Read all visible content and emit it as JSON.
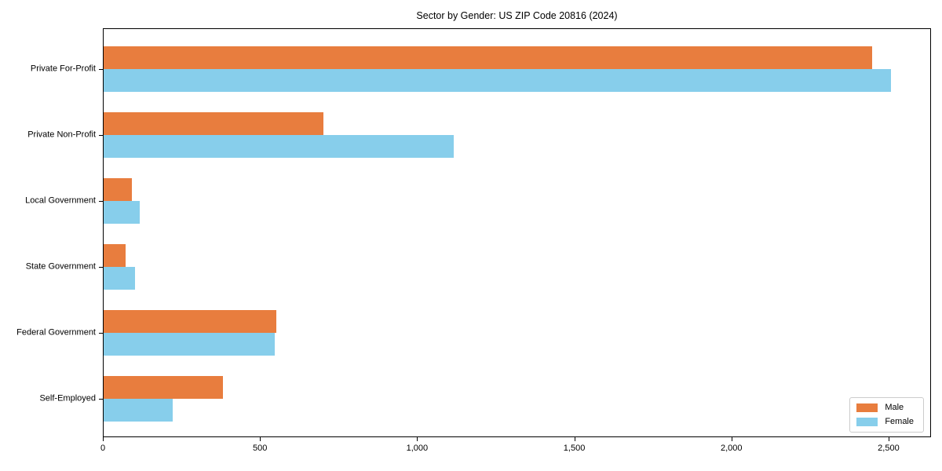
{
  "chart_data": {
    "type": "bar",
    "orientation": "horizontal",
    "title": "Sector by Gender: US ZIP Code 20816 (2024)",
    "categories": [
      "Private For-Profit",
      "Private Non-Profit",
      "Local Government",
      "State Government",
      "Federal Government",
      "Self-Employed"
    ],
    "series": [
      {
        "name": "Male",
        "color": "#e87d3e",
        "values": [
          2445,
          700,
          90,
          70,
          550,
          380
        ]
      },
      {
        "name": "Female",
        "color": "#87ceeb",
        "values": [
          2505,
          1115,
          115,
          100,
          545,
          220
        ]
      }
    ],
    "xlabel": "",
    "ylabel": "",
    "xlim": [
      0,
      2630
    ],
    "xticks": {
      "values": [
        0,
        500,
        1000,
        1500,
        2000,
        2500
      ],
      "labels": [
        "0",
        "500",
        "1,000",
        "1,500",
        "2,000",
        "2,500"
      ]
    },
    "grid": false,
    "legend_position": "lower right",
    "plot_border_color": "#000000",
    "background_color": "#ffffff"
  }
}
